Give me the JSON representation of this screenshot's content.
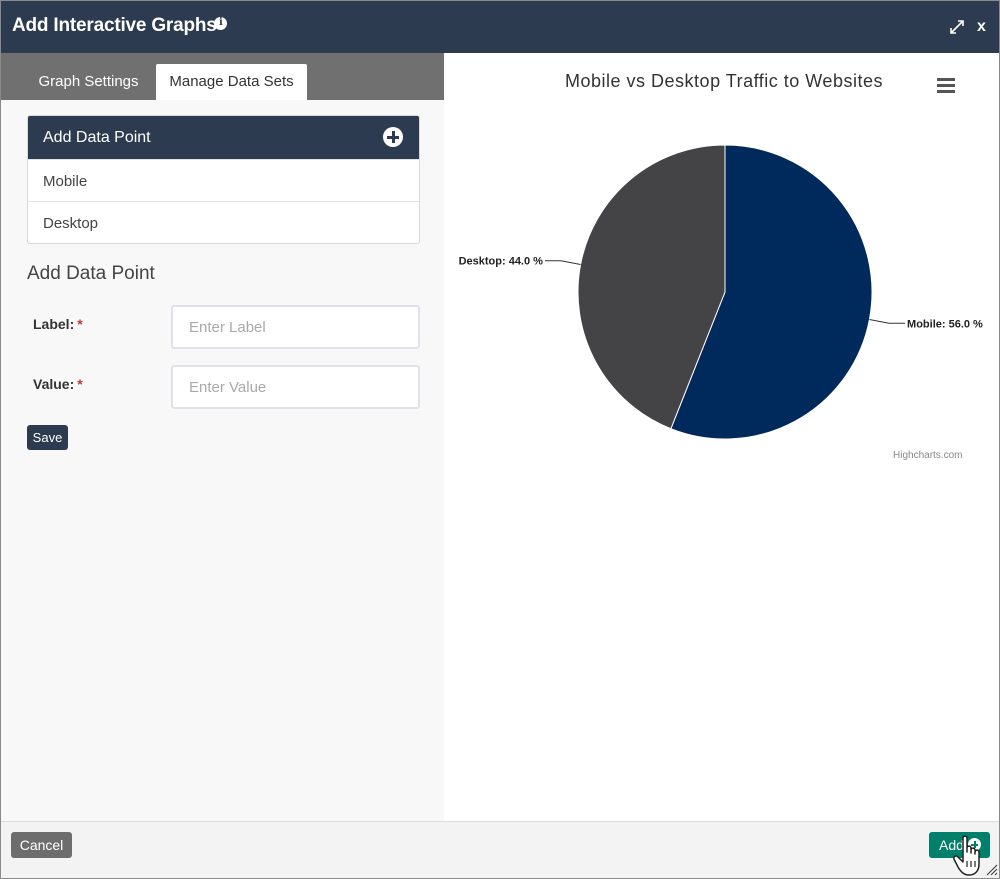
{
  "dialog": {
    "title": "Add Interactive Graphs",
    "info_icon": "info-icon",
    "expand_icon": "expand-icon",
    "close_label": "x"
  },
  "tabs": [
    {
      "label": "Graph Settings",
      "active": false
    },
    {
      "label": "Manage Data Sets",
      "active": true
    }
  ],
  "data_points": {
    "header": "Add Data Point",
    "add_icon": "plus-circle-icon",
    "items": [
      {
        "label": "Mobile"
      },
      {
        "label": "Desktop"
      }
    ]
  },
  "form": {
    "title": "Add Data Point",
    "label_field": {
      "label": "Label:",
      "required_mark": "*",
      "placeholder": "Enter Label",
      "value": ""
    },
    "value_field": {
      "label": "Value:",
      "required_mark": "*",
      "placeholder": "Enter Value",
      "value": ""
    },
    "save_label": "Save"
  },
  "chart": {
    "menu_icon": "hamburger-menu-icon",
    "credits": "Highcharts.com"
  },
  "chart_data": {
    "type": "pie",
    "title": "Mobile vs Desktop Traffic to Websites",
    "slices": [
      {
        "name": "Mobile",
        "value": 56.0,
        "label": "Mobile: 56.0 %",
        "color": "#002a5c"
      },
      {
        "name": "Desktop",
        "value": 44.0,
        "label": "Desktop: 44.0 %",
        "color": "#444447"
      }
    ]
  },
  "footer": {
    "cancel_label": "Cancel",
    "add_label": "Add",
    "add_icon": "plus-circle-icon"
  },
  "colors": {
    "header": "#2c3b4f",
    "add_button": "#00806b",
    "cancel_button": "#6d6d6d"
  }
}
